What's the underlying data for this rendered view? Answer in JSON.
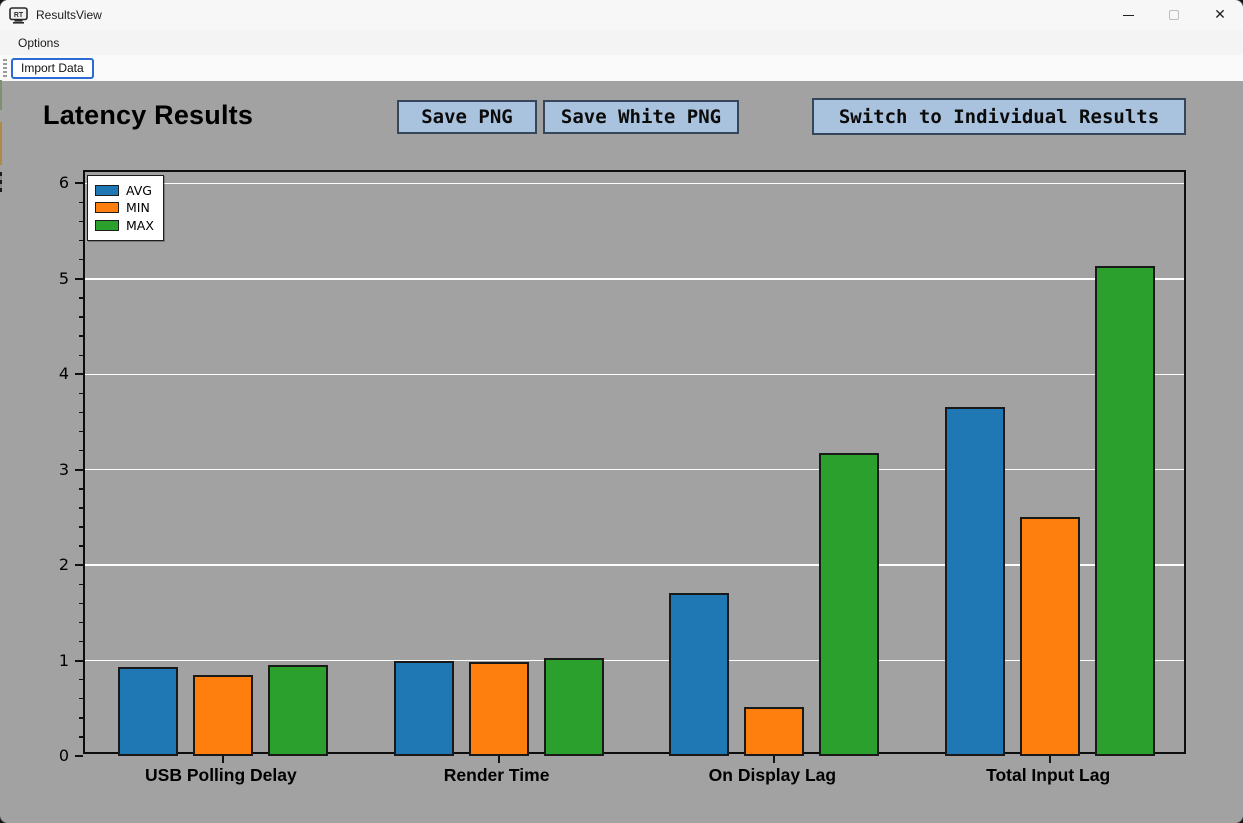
{
  "window": {
    "title": "ResultsView",
    "controls": {
      "minimize": "minimize",
      "maximize": "maximize",
      "close": "close"
    }
  },
  "menu": {
    "options_label": "Options"
  },
  "toolbar": {
    "import_label": "Import Data"
  },
  "header": {
    "title": "Latency Results",
    "save_png_label": "Save PNG",
    "save_white_png_label": "Save White PNG",
    "switch_label": "Switch to Individual Results"
  },
  "colors": {
    "content_bg": "#a2a2a2",
    "header_button_bg": "#a9c2de",
    "header_button_border": "#36465a",
    "import_button_border": "#2b6bd3",
    "grid_line": "#fdfdfd",
    "avg": "#1f77b4",
    "min": "#ff7f0e",
    "max": "#2ca02c"
  },
  "chart_data": {
    "type": "bar",
    "title": "",
    "xlabel": "",
    "ylabel": "",
    "categories": [
      "USB Polling Delay",
      "Render Time",
      "On Display Lag",
      "Total Input Lag"
    ],
    "series": [
      {
        "name": "AVG",
        "color": "#1f77b4",
        "values": [
          0.93,
          1.0,
          1.71,
          3.66
        ]
      },
      {
        "name": "MIN",
        "color": "#ff7f0e",
        "values": [
          0.85,
          0.99,
          0.51,
          2.5
        ]
      },
      {
        "name": "MAX",
        "color": "#2ca02c",
        "values": [
          0.95,
          1.03,
          3.18,
          5.13
        ]
      }
    ],
    "ylim": [
      0,
      6.12
    ],
    "yticks": [
      0,
      1,
      2,
      3,
      4,
      5,
      6
    ],
    "minor_tick_step": 0.2,
    "grid": true,
    "legend_position": "upper-left"
  }
}
